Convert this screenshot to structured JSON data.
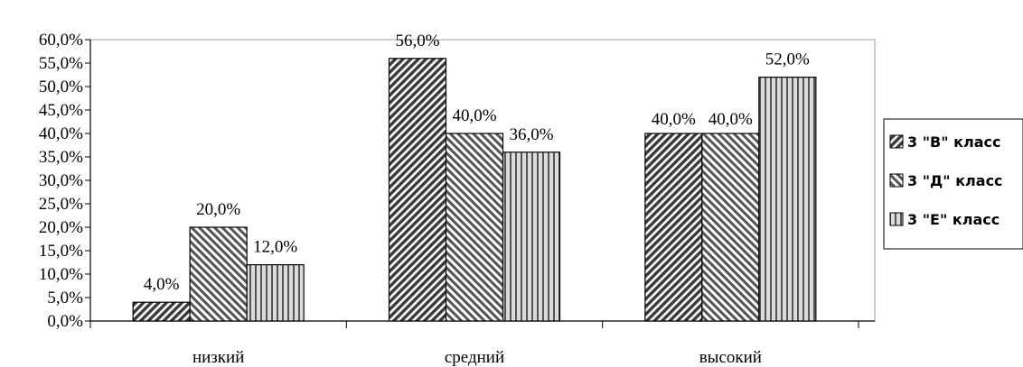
{
  "chart_data": {
    "type": "bar",
    "categories": [
      "низкий",
      "средний",
      "высокий"
    ],
    "series": [
      {
        "name": "3 \"В\" класс",
        "values": [
          4.0,
          56.0,
          40.0
        ],
        "pattern": "diag-down"
      },
      {
        "name": "3 \"Д\" класс",
        "values": [
          20.0,
          40.0,
          40.0
        ],
        "pattern": "diag-up"
      },
      {
        "name": "3 \"Е\" класс",
        "values": [
          12.0,
          36.0,
          52.0
        ],
        "pattern": "vertical"
      }
    ],
    "data_labels": [
      [
        "4,0%",
        "56,0%",
        "40,0%"
      ],
      [
        "20,0%",
        "40,0%",
        "40,0%"
      ],
      [
        "12,0%",
        "36,0%",
        "52,0%"
      ]
    ],
    "y_ticks": [
      "0,0%",
      "5,0%",
      "10,0%",
      "15,0%",
      "20,0%",
      "25,0%",
      "30,0%",
      "35,0%",
      "40,0%",
      "45,0%",
      "50,0%",
      "55,0%",
      "60,0%"
    ],
    "ylim": [
      0,
      60
    ],
    "grid": false,
    "legend_position": "right",
    "colors": {
      "bar_fill": "#ffffff",
      "bar_stroke": "#000000",
      "pattern": "#444444"
    }
  }
}
